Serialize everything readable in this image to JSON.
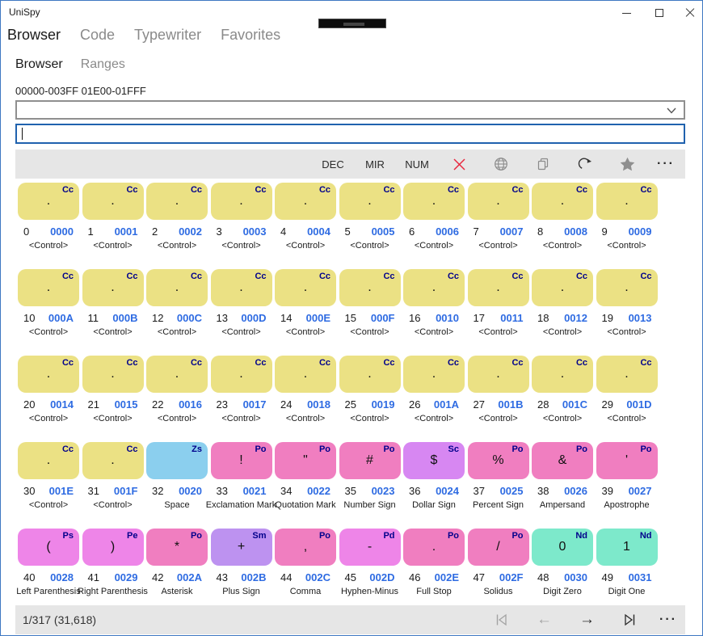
{
  "window": {
    "title": "UniSpy"
  },
  "nav": {
    "items": [
      {
        "label": "Browser",
        "active": true
      },
      {
        "label": "Code",
        "active": false
      },
      {
        "label": "Typewriter",
        "active": false
      },
      {
        "label": "Favorites",
        "active": false
      }
    ]
  },
  "subnav": {
    "items": [
      {
        "label": "Browser",
        "active": true
      },
      {
        "label": "Ranges",
        "active": false
      }
    ]
  },
  "range_summary": "00000-003FF 01E00-01FFF",
  "range_selector": {
    "value": ""
  },
  "search_input": {
    "value": "",
    "placeholder": ""
  },
  "toolbar": {
    "dec_label": "DEC",
    "mir_label": "MIR",
    "num_label": "NUM",
    "clear_color": "#e8283f",
    "icon_gray": "#8a8a8a",
    "icon_dark": "#333333",
    "more_label": "···"
  },
  "grid": {
    "badge_color": "#00008b",
    "hex_link_color": "#2e6be2",
    "category_colors": {
      "Cc": "#ebe184",
      "Zs": "#8bcfee",
      "Po": "#f07ec0",
      "Ps": "#ee85e8",
      "Pe": "#ee85e8",
      "Pd": "#ee85e8",
      "Sc": "#d787f2",
      "Sm": "#bd92f0",
      "Nd": "#7de9cb"
    },
    "cells": [
      {
        "dec": 0,
        "hex": "0000",
        "cat": "Cc",
        "glyph": ".",
        "name": "<Control>"
      },
      {
        "dec": 1,
        "hex": "0001",
        "cat": "Cc",
        "glyph": ".",
        "name": "<Control>"
      },
      {
        "dec": 2,
        "hex": "0002",
        "cat": "Cc",
        "glyph": ".",
        "name": "<Control>"
      },
      {
        "dec": 3,
        "hex": "0003",
        "cat": "Cc",
        "glyph": ".",
        "name": "<Control>"
      },
      {
        "dec": 4,
        "hex": "0004",
        "cat": "Cc",
        "glyph": ".",
        "name": "<Control>"
      },
      {
        "dec": 5,
        "hex": "0005",
        "cat": "Cc",
        "glyph": ".",
        "name": "<Control>"
      },
      {
        "dec": 6,
        "hex": "0006",
        "cat": "Cc",
        "glyph": ".",
        "name": "<Control>"
      },
      {
        "dec": 7,
        "hex": "0007",
        "cat": "Cc",
        "glyph": ".",
        "name": "<Control>"
      },
      {
        "dec": 8,
        "hex": "0008",
        "cat": "Cc",
        "glyph": ".",
        "name": "<Control>"
      },
      {
        "dec": 9,
        "hex": "0009",
        "cat": "Cc",
        "glyph": ".",
        "name": "<Control>"
      },
      {
        "dec": 10,
        "hex": "000A",
        "cat": "Cc",
        "glyph": ".",
        "name": "<Control>"
      },
      {
        "dec": 11,
        "hex": "000B",
        "cat": "Cc",
        "glyph": ".",
        "name": "<Control>"
      },
      {
        "dec": 12,
        "hex": "000C",
        "cat": "Cc",
        "glyph": ".",
        "name": "<Control>"
      },
      {
        "dec": 13,
        "hex": "000D",
        "cat": "Cc",
        "glyph": ".",
        "name": "<Control>"
      },
      {
        "dec": 14,
        "hex": "000E",
        "cat": "Cc",
        "glyph": ".",
        "name": "<Control>"
      },
      {
        "dec": 15,
        "hex": "000F",
        "cat": "Cc",
        "glyph": ".",
        "name": "<Control>"
      },
      {
        "dec": 16,
        "hex": "0010",
        "cat": "Cc",
        "glyph": ".",
        "name": "<Control>"
      },
      {
        "dec": 17,
        "hex": "0011",
        "cat": "Cc",
        "glyph": ".",
        "name": "<Control>"
      },
      {
        "dec": 18,
        "hex": "0012",
        "cat": "Cc",
        "glyph": ".",
        "name": "<Control>"
      },
      {
        "dec": 19,
        "hex": "0013",
        "cat": "Cc",
        "glyph": ".",
        "name": "<Control>"
      },
      {
        "dec": 20,
        "hex": "0014",
        "cat": "Cc",
        "glyph": ".",
        "name": "<Control>"
      },
      {
        "dec": 21,
        "hex": "0015",
        "cat": "Cc",
        "glyph": ".",
        "name": "<Control>"
      },
      {
        "dec": 22,
        "hex": "0016",
        "cat": "Cc",
        "glyph": ".",
        "name": "<Control>"
      },
      {
        "dec": 23,
        "hex": "0017",
        "cat": "Cc",
        "glyph": ".",
        "name": "<Control>"
      },
      {
        "dec": 24,
        "hex": "0018",
        "cat": "Cc",
        "glyph": ".",
        "name": "<Control>"
      },
      {
        "dec": 25,
        "hex": "0019",
        "cat": "Cc",
        "glyph": ".",
        "name": "<Control>"
      },
      {
        "dec": 26,
        "hex": "001A",
        "cat": "Cc",
        "glyph": ".",
        "name": "<Control>"
      },
      {
        "dec": 27,
        "hex": "001B",
        "cat": "Cc",
        "glyph": ".",
        "name": "<Control>"
      },
      {
        "dec": 28,
        "hex": "001C",
        "cat": "Cc",
        "glyph": ".",
        "name": "<Control>"
      },
      {
        "dec": 29,
        "hex": "001D",
        "cat": "Cc",
        "glyph": ".",
        "name": "<Control>"
      },
      {
        "dec": 30,
        "hex": "001E",
        "cat": "Cc",
        "glyph": ".",
        "name": "<Control>"
      },
      {
        "dec": 31,
        "hex": "001F",
        "cat": "Cc",
        "glyph": ".",
        "name": "<Control>"
      },
      {
        "dec": 32,
        "hex": "0020",
        "cat": "Zs",
        "glyph": " ",
        "name": "Space"
      },
      {
        "dec": 33,
        "hex": "0021",
        "cat": "Po",
        "glyph": "!",
        "name": "Exclamation Mark"
      },
      {
        "dec": 34,
        "hex": "0022",
        "cat": "Po",
        "glyph": "\"",
        "name": "Quotation Mark"
      },
      {
        "dec": 35,
        "hex": "0023",
        "cat": "Po",
        "glyph": "#",
        "name": "Number Sign"
      },
      {
        "dec": 36,
        "hex": "0024",
        "cat": "Sc",
        "glyph": "$",
        "name": "Dollar Sign"
      },
      {
        "dec": 37,
        "hex": "0025",
        "cat": "Po",
        "glyph": "%",
        "name": "Percent Sign"
      },
      {
        "dec": 38,
        "hex": "0026",
        "cat": "Po",
        "glyph": "&",
        "name": "Ampersand"
      },
      {
        "dec": 39,
        "hex": "0027",
        "cat": "Po",
        "glyph": "'",
        "name": "Apostrophe"
      },
      {
        "dec": 40,
        "hex": "0028",
        "cat": "Ps",
        "glyph": "(",
        "name": "Left Parenthesis"
      },
      {
        "dec": 41,
        "hex": "0029",
        "cat": "Pe",
        "glyph": ")",
        "name": "Right Parenthesis"
      },
      {
        "dec": 42,
        "hex": "002A",
        "cat": "Po",
        "glyph": "*",
        "name": "Asterisk"
      },
      {
        "dec": 43,
        "hex": "002B",
        "cat": "Sm",
        "glyph": "+",
        "name": "Plus Sign"
      },
      {
        "dec": 44,
        "hex": "002C",
        "cat": "Po",
        "glyph": ",",
        "name": "Comma"
      },
      {
        "dec": 45,
        "hex": "002D",
        "cat": "Pd",
        "glyph": "-",
        "name": "Hyphen-Minus"
      },
      {
        "dec": 46,
        "hex": "002E",
        "cat": "Po",
        "glyph": ".",
        "name": "Full Stop"
      },
      {
        "dec": 47,
        "hex": "002F",
        "cat": "Po",
        "glyph": "/",
        "name": "Solidus"
      },
      {
        "dec": 48,
        "hex": "0030",
        "cat": "Nd",
        "glyph": "0",
        "name": "Digit Zero"
      },
      {
        "dec": 49,
        "hex": "0031",
        "cat": "Nd",
        "glyph": "1",
        "name": "Digit One"
      }
    ]
  },
  "statusbar": {
    "position_label": "1/317 (31,618)",
    "more_label": "···"
  }
}
